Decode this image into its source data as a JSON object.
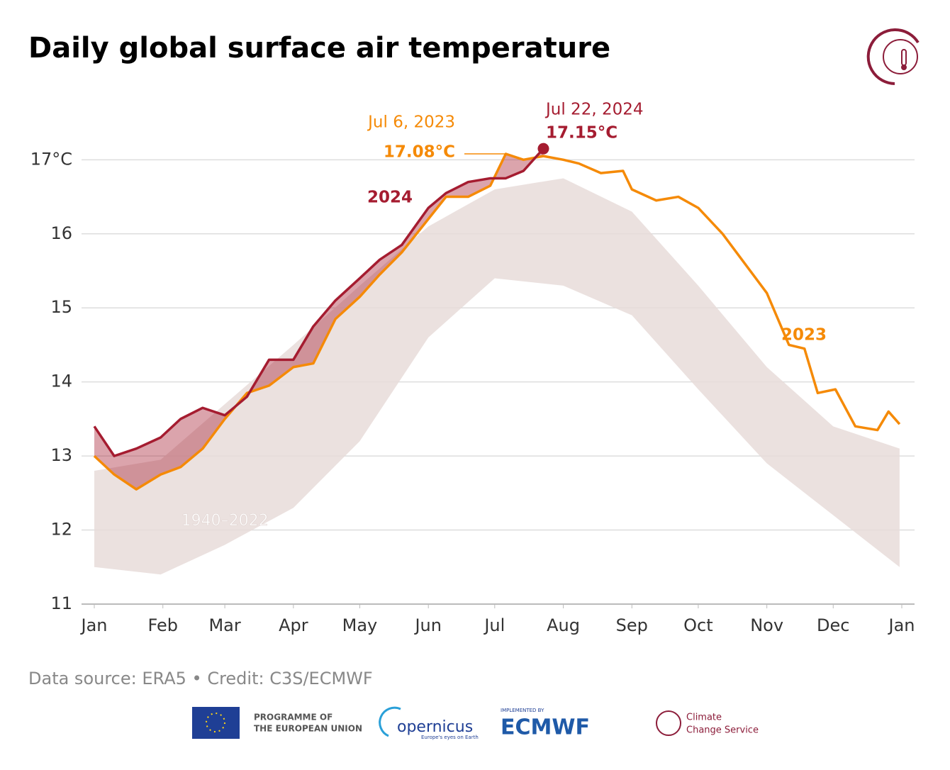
{
  "chart_data": {
    "type": "line",
    "title": "Daily global surface air temperature",
    "source": "Data source: ERA5 • Credit: C3S/ECMWF",
    "xlim": [
      1,
      366
    ],
    "xticks": [
      {
        "value": 1,
        "label": "Jan"
      },
      {
        "value": 32,
        "label": "Feb"
      },
      {
        "value": 60,
        "label": "Mar"
      },
      {
        "value": 91,
        "label": "Apr"
      },
      {
        "value": 121,
        "label": "May"
      },
      {
        "value": 152,
        "label": "Jun"
      },
      {
        "value": 182,
        "label": "Jul"
      },
      {
        "value": 213,
        "label": "Aug"
      },
      {
        "value": 244,
        "label": "Sep"
      },
      {
        "value": 274,
        "label": "Oct"
      },
      {
        "value": 305,
        "label": "Nov"
      },
      {
        "value": 335,
        "label": "Dec"
      },
      {
        "value": 366,
        "label": "Jan"
      }
    ],
    "ylim": [
      11,
      17.3
    ],
    "yticks": [
      11,
      12,
      13,
      14,
      15,
      16,
      {
        "value": 17,
        "label": "17°C"
      }
    ],
    "grid": true,
    "x": [
      1,
      10,
      20,
      31,
      40,
      50,
      60,
      70,
      80,
      91,
      100,
      110,
      121,
      130,
      140,
      152,
      160,
      170,
      180,
      187,
      195,
      204,
      213,
      220,
      230,
      240,
      244,
      255,
      265,
      274,
      285,
      295,
      305,
      315,
      322,
      328,
      336,
      345,
      355,
      360,
      365
    ],
    "series": [
      {
        "name": "2023",
        "color": "#f58a07",
        "values": [
          13.0,
          12.75,
          12.55,
          12.75,
          12.85,
          13.1,
          13.5,
          13.85,
          13.95,
          14.2,
          14.25,
          14.85,
          15.15,
          15.45,
          15.75,
          16.2,
          16.5,
          16.5,
          16.65,
          17.08,
          17.0,
          17.05,
          17.0,
          16.95,
          16.82,
          16.85,
          16.6,
          16.45,
          16.5,
          16.35,
          16.0,
          15.6,
          15.2,
          14.5,
          14.45,
          13.85,
          13.9,
          13.4,
          13.35,
          13.6,
          13.43
        ]
      },
      {
        "name": "2024",
        "color": "#a51c30",
        "values": [
          13.4,
          13.0,
          13.1,
          13.25,
          13.5,
          13.65,
          13.55,
          13.8,
          14.3,
          14.3,
          14.75,
          15.1,
          15.4,
          15.65,
          15.85,
          16.35,
          16.55,
          16.7,
          16.75,
          16.75,
          16.85,
          17.15,
          null,
          null,
          null,
          null,
          null,
          null,
          null,
          null,
          null,
          null,
          null,
          null,
          null,
          null,
          null,
          null,
          null,
          null,
          null
        ]
      }
    ],
    "band": {
      "name": "1940–2022",
      "color": "#e8dcd9",
      "x": [
        1,
        31,
        60,
        91,
        121,
        152,
        182,
        213,
        244,
        274,
        305,
        335,
        365
      ],
      "lower": [
        11.5,
        11.4,
        11.8,
        12.3,
        13.2,
        14.6,
        15.4,
        15.3,
        14.9,
        13.9,
        12.9,
        12.2,
        11.5
      ],
      "upper": [
        12.8,
        12.95,
        13.7,
        14.5,
        15.3,
        16.1,
        16.6,
        16.75,
        16.3,
        15.3,
        14.2,
        13.4,
        13.1
      ]
    },
    "annotations": [
      {
        "text": "Jul 6, 2023",
        "value_label": "17.08°C",
        "x": 187,
        "value": 17.08,
        "color": "#f58a07"
      },
      {
        "text": "Jul 22, 2024",
        "value_label": "17.15°C",
        "x": 204,
        "value": 17.15,
        "color": "#a51c30"
      }
    ]
  },
  "footer": {
    "eu_line1": "PROGRAMME OF",
    "eu_line2": "THE EUROPEAN UNION",
    "copernicus": "opernicus",
    "copernicus_tagline": "Europe's eyes on Earth",
    "implemented": "IMPLEMENTED BY",
    "ecmwf": "ECMWF",
    "c3s_line1": "Climate",
    "c3s_line2": "Change Service"
  }
}
